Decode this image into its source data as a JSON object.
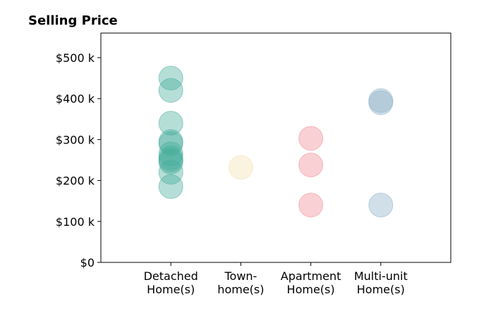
{
  "chart_data": {
    "type": "scatter",
    "title": "Selling Price",
    "xlabel": "",
    "ylabel": "",
    "categories": [
      [
        "Detached",
        "Home(s)"
      ],
      [
        "Town-",
        "home(s)"
      ],
      [
        "Apartment",
        "Home(s)"
      ],
      [
        "Multi-unit",
        "Home(s)"
      ]
    ],
    "ylim": [
      0,
      560
    ],
    "xlim": [
      -1,
      4
    ],
    "y_ticks": [
      0,
      100,
      200,
      300,
      400,
      500
    ],
    "y_tick_labels": [
      "$0",
      "$100 k",
      "$200 k",
      "$300 k",
      "$400 k",
      "$500 k"
    ],
    "grid": false,
    "series": [
      {
        "color": "#45ad9b",
        "values": [
          450,
          420,
          340,
          295,
          290,
          265,
          255,
          250,
          245,
          220,
          185
        ]
      },
      {
        "color": "#f3e0b0",
        "values": [
          232
        ]
      },
      {
        "color": "#f08a94",
        "values": [
          303,
          238,
          140
        ]
      },
      {
        "color": "#8aaec6",
        "values": [
          395,
          390,
          140
        ]
      }
    ]
  }
}
